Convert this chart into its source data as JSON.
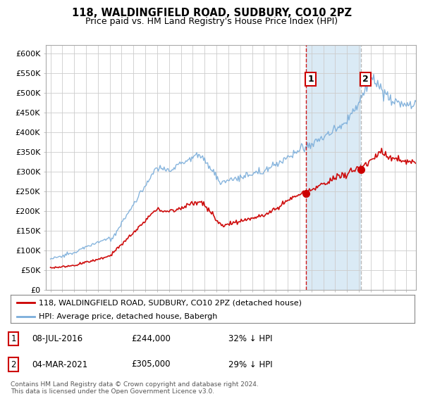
{
  "title": "118, WALDINGFIELD ROAD, SUDBURY, CO10 2PZ",
  "subtitle": "Price paid vs. HM Land Registry's House Price Index (HPI)",
  "ylabel_ticks": [
    "£0",
    "£50K",
    "£100K",
    "£150K",
    "£200K",
    "£250K",
    "£300K",
    "£350K",
    "£400K",
    "£450K",
    "£500K",
    "£550K",
    "£600K"
  ],
  "ylim": [
    0,
    620000
  ],
  "yticks": [
    0,
    50000,
    100000,
    150000,
    200000,
    250000,
    300000,
    350000,
    400000,
    450000,
    500000,
    550000,
    600000
  ],
  "xlim_start": 1994.6,
  "xlim_end": 2025.8,
  "sale1_year": 2016.52,
  "sale1_price": 244000,
  "sale2_year": 2021.17,
  "sale2_price": 305000,
  "legend_line1": "118, WALDINGFIELD ROAD, SUDBURY, CO10 2PZ (detached house)",
  "legend_line2": "HPI: Average price, detached house, Babergh",
  "line_red_color": "#cc0000",
  "line_blue_color": "#7aadda",
  "shade_color": "#daeaf5",
  "background_color": "#ffffff",
  "grid_color": "#cccccc",
  "sale1_vline_color": "#cc0000",
  "sale2_vline_color": "#aaaaaa"
}
